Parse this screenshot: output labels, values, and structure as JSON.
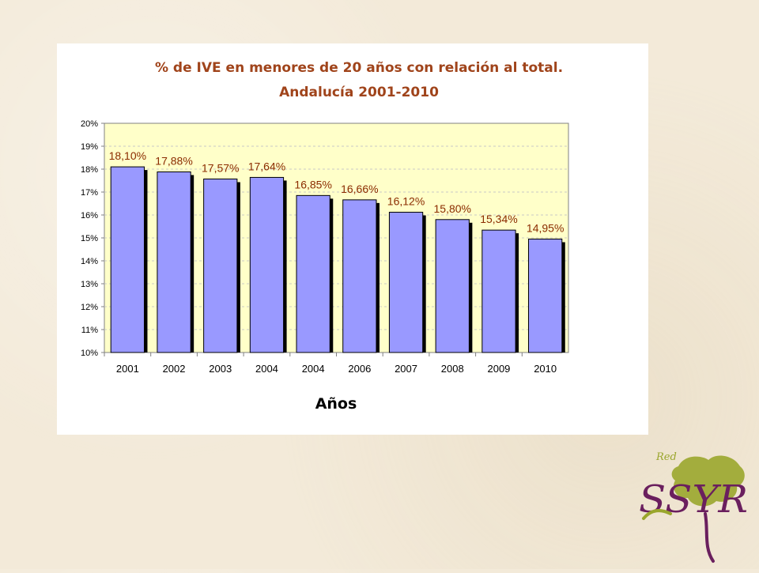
{
  "chart_data": {
    "type": "bar",
    "title": "% de IVE en menores de 20 años con relación al total.",
    "subtitle": "Andalucía 2001-2010",
    "xlabel": "Años",
    "ylabel": "",
    "categories": [
      "2001",
      "2002",
      "2003",
      "2004",
      "2004",
      "2006",
      "2007",
      "2008",
      "2009",
      "2010"
    ],
    "values": [
      18.1,
      17.88,
      17.57,
      17.64,
      16.85,
      16.66,
      16.12,
      15.8,
      15.34,
      14.95
    ],
    "data_labels": [
      "18,10%",
      "17,88%",
      "17,57%",
      "17,64%",
      "16,85%",
      "16,66%",
      "16,12%",
      "15,80%",
      "15,34%",
      "14,95%"
    ],
    "ylim": [
      10,
      20
    ],
    "yticks": [
      "10%",
      "11%",
      "12%",
      "13%",
      "14%",
      "15%",
      "16%",
      "17%",
      "18%",
      "19%",
      "20%"
    ],
    "grid": true,
    "legend": "none",
    "colors": {
      "bar": "#9999ff",
      "bar_shadow": "#000000",
      "plot_bg": "#ffffc9",
      "title": "#a0441b",
      "data_label": "#8b2c00"
    }
  },
  "logo": {
    "top_text": "Red",
    "main_text": "SSYR",
    "colors": {
      "green": "#9aa62c",
      "purple": "#6a1f5e"
    }
  }
}
